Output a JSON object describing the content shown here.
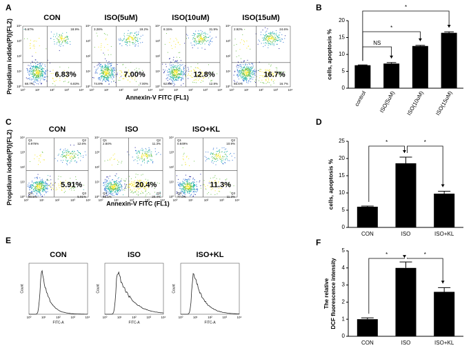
{
  "panel_labels": [
    "A",
    "B",
    "C",
    "D",
    "E",
    "F"
  ],
  "panel_a": {
    "ylabel": "Propidium iodide(PI)(FL2)",
    "xlabel": "Annexin-V FITC (FL1)",
    "decade_ticks": [
      "10⁰",
      "10¹",
      "10²",
      "10³",
      "10⁴"
    ],
    "plots": [
      {
        "title": "CON",
        "highlight": "6.83%",
        "quadrants": [
          "5.67%",
          "18.9%",
          "68.7%",
          "6.83%"
        ]
      },
      {
        "title": "ISO(5uM)",
        "highlight": "7.00%",
        "quadrants": [
          "3.28%",
          "19.2%",
          "74.8%",
          "7.00%"
        ]
      },
      {
        "title": "ISO(10uM)",
        "highlight": "12.8%",
        "quadrants": [
          "8.15%",
          "31.9%",
          "62.8%",
          "12.8%"
        ]
      },
      {
        "title": "ISO(15uM)",
        "highlight": "16.7%",
        "quadrants": [
          "2.92%",
          "24.6%",
          "65.6%",
          "16.7%"
        ]
      }
    ]
  },
  "panel_c": {
    "ylabel": "Propidium iodide(PI)(FL2)",
    "xlabel": "Annexin-V FITC (FL1)",
    "decade_ticks": [
      "10⁰",
      "10¹",
      "10²",
      "10³",
      "10⁴"
    ],
    "plots": [
      {
        "title": "CON",
        "highlight": "5.91%",
        "quadrants": [
          {
            "name": "Q1",
            "value": "0.976%"
          },
          {
            "name": "Q2",
            "value": "12.6%"
          },
          {
            "name": "Q4",
            "value": "80.5%"
          },
          {
            "name": "Q3",
            "value": "5.91%"
          }
        ]
      },
      {
        "title": "ISO",
        "highlight": "20.4%",
        "quadrants": [
          {
            "name": "Q1",
            "value": "2.84%"
          },
          {
            "name": "Q2",
            "value": "11.3%"
          },
          {
            "name": "Q4",
            "value": "65.1%"
          },
          {
            "name": "Q3",
            "value": "20.4%"
          }
        ]
      },
      {
        "title": "ISO+KL",
        "highlight": "11.3%",
        "quadrants": [
          {
            "name": "Q1",
            "value": "0.849%"
          },
          {
            "name": "Q2",
            "value": "10.9%"
          },
          {
            "name": "Q4",
            "value": "77.0%"
          },
          {
            "name": "Q3",
            "value": "11.3%"
          }
        ]
      }
    ]
  },
  "panel_e": {
    "xlabel": "FITC-A",
    "ylabel": "Count",
    "decade_ticks": [
      "10⁰",
      "10¹",
      "10²",
      "10³",
      "10⁴"
    ],
    "plots": [
      {
        "title": "CON"
      },
      {
        "title": "ISO"
      },
      {
        "title": "ISO+KL"
      }
    ]
  },
  "chart_data": [
    {
      "type": "bar",
      "ylabel": "cells, apoptosis %",
      "categories": [
        "control",
        "ISO(5uM)",
        "ISO(10uM)",
        "ISO(15uM)"
      ],
      "values": [
        6.8,
        7.3,
        12.5,
        16.4
      ],
      "errors": [
        0.1,
        0.3,
        0.2,
        0.3
      ],
      "color": "#000000",
      "ylim": [
        0,
        20
      ],
      "yticks": [
        0,
        5,
        10,
        15,
        20
      ],
      "comparisons": [
        {
          "from": 0,
          "to": 1,
          "label": "NS"
        },
        {
          "from": 0,
          "to": 2,
          "label": "*"
        },
        {
          "from": 0,
          "to": 3,
          "label": "*"
        }
      ]
    },
    {
      "type": "bar",
      "ylabel": "cells, apoptosis %",
      "categories": [
        "CON",
        "ISO",
        "ISO+KL"
      ],
      "values": [
        6.0,
        18.6,
        9.8
      ],
      "errors": [
        0.2,
        1.8,
        0.7
      ],
      "color": "#000000",
      "ylim": [
        0,
        25
      ],
      "yticks": [
        0,
        5,
        10,
        15,
        20,
        25
      ],
      "comparisons": [
        {
          "from": 0,
          "to": 1,
          "label": "*"
        },
        {
          "from": 1,
          "to": 2,
          "label": "*"
        }
      ]
    },
    {
      "type": "bar",
      "ylabel": [
        "The relative",
        "DCF fluorescence intensity"
      ],
      "categories": [
        "CON",
        "ISO",
        "ISO+KL"
      ],
      "values": [
        1.0,
        4.0,
        2.6
      ],
      "errors": [
        0.08,
        0.35,
        0.25
      ],
      "color": "#000000",
      "ylim": [
        0,
        5
      ],
      "yticks": [
        0,
        1,
        2,
        3,
        4,
        5
      ],
      "comparisons": [
        {
          "from": 0,
          "to": 1,
          "label": "*"
        },
        {
          "from": 1,
          "to": 2,
          "label": "*"
        }
      ]
    }
  ]
}
